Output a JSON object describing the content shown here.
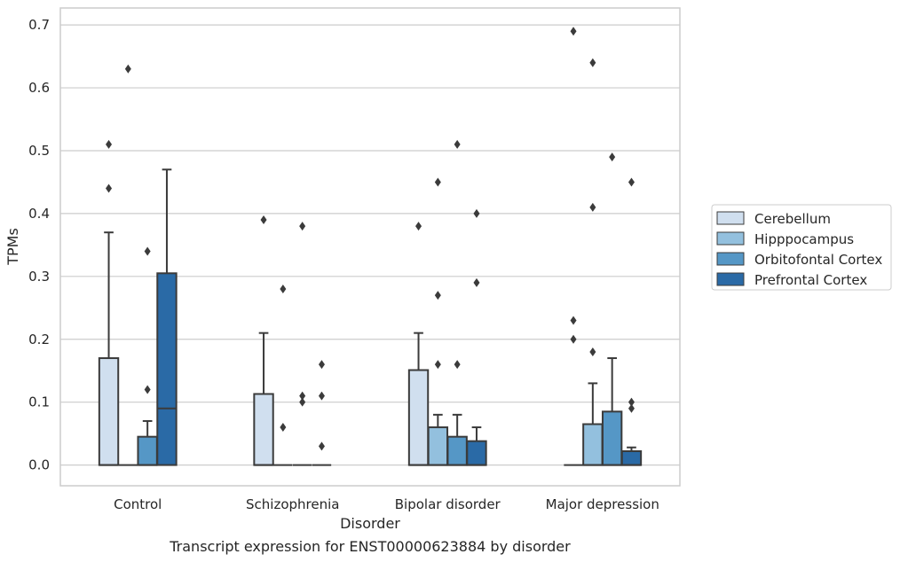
{
  "chart_data": {
    "type": "box",
    "xlabel": "Disorder",
    "ylabel": "TPMs",
    "caption": "Transcript expression for ENST00000623884 by disorder",
    "ylim": [
      -0.033,
      0.727
    ],
    "yticks": [
      "0.0",
      "0.1",
      "0.2",
      "0.3",
      "0.4",
      "0.5",
      "0.6",
      "0.7"
    ],
    "grid": "horizontal",
    "legend_position": "right, outside plot",
    "categories": [
      "Control",
      "Schizophrenia",
      "Bipolar disorder",
      "Major depression"
    ],
    "series": [
      {
        "name": "Cerebellum",
        "color": "#d0dfef",
        "boxes": [
          {
            "q1": 0,
            "median": 0,
            "q3": 0.17,
            "whisker_low": 0,
            "whisker_high": 0.37,
            "outliers": [
              0.44,
              0.51
            ]
          },
          {
            "q1": 0,
            "median": 0,
            "q3": 0.113,
            "whisker_low": 0,
            "whisker_high": 0.21,
            "outliers": [
              0.39
            ]
          },
          {
            "q1": 0,
            "median": 0,
            "q3": 0.151,
            "whisker_low": 0,
            "whisker_high": 0.21,
            "outliers": [
              0.38
            ]
          },
          {
            "q1": 0,
            "median": 0,
            "q3": 0,
            "whisker_low": 0,
            "whisker_high": 0,
            "outliers": [
              0.2,
              0.23,
              0.69
            ]
          }
        ]
      },
      {
        "name": "Hipppocampus",
        "color": "#93c0de",
        "boxes": [
          {
            "q1": 0,
            "median": 0,
            "q3": 0,
            "whisker_low": 0,
            "whisker_high": 0,
            "outliers": [
              0.63
            ]
          },
          {
            "q1": 0,
            "median": 0,
            "q3": 0,
            "whisker_low": 0,
            "whisker_high": 0,
            "outliers": [
              0.06,
              0.28
            ]
          },
          {
            "q1": 0,
            "median": 0,
            "q3": 0.06,
            "whisker_low": 0,
            "whisker_high": 0.08,
            "outliers": [
              0.16,
              0.27,
              0.45
            ]
          },
          {
            "q1": 0,
            "median": 0,
            "q3": 0.065,
            "whisker_low": 0,
            "whisker_high": 0.13,
            "outliers": [
              0.18,
              0.41,
              0.64
            ]
          }
        ]
      },
      {
        "name": "Orbitofontal Cortex",
        "color": "#5597c6",
        "boxes": [
          {
            "q1": 0,
            "median": 0,
            "q3": 0.045,
            "whisker_low": 0,
            "whisker_high": 0.07,
            "outliers": [
              0.12,
              0.34
            ]
          },
          {
            "q1": 0,
            "median": 0,
            "q3": 0,
            "whisker_low": 0,
            "whisker_high": 0,
            "outliers": [
              0.1,
              0.11,
              0.38
            ]
          },
          {
            "q1": 0,
            "median": 0,
            "q3": 0.045,
            "whisker_low": 0,
            "whisker_high": 0.08,
            "outliers": [
              0.16,
              0.51
            ]
          },
          {
            "q1": 0,
            "median": 0,
            "q3": 0.085,
            "whisker_low": 0,
            "whisker_high": 0.17,
            "outliers": [
              0.49
            ]
          }
        ]
      },
      {
        "name": "Prefrontal Cortex",
        "color": "#2a6aa6",
        "boxes": [
          {
            "q1": 0,
            "median": 0.09,
            "q3": 0.305,
            "whisker_low": 0,
            "whisker_high": 0.47,
            "outliers": []
          },
          {
            "q1": 0,
            "median": 0,
            "q3": 0,
            "whisker_low": 0,
            "whisker_high": 0,
            "outliers": [
              0.03,
              0.11,
              0.16
            ]
          },
          {
            "q1": 0,
            "median": 0,
            "q3": 0.038,
            "whisker_low": 0,
            "whisker_high": 0.06,
            "outliers": [
              0.29,
              0.4
            ]
          },
          {
            "q1": 0,
            "median": 0,
            "q3": 0.022,
            "whisker_low": 0,
            "whisker_high": 0.028,
            "outliers": [
              0.09,
              0.1,
              0.45
            ]
          }
        ]
      }
    ]
  }
}
